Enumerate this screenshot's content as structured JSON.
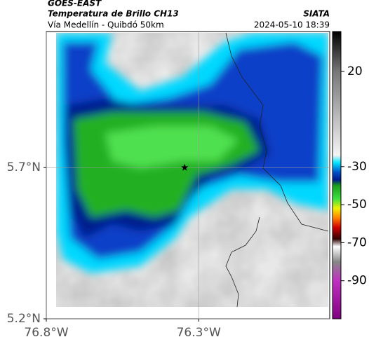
{
  "header": {
    "title": "GOES-EAST",
    "subtitle": "Temperatura de Brillo CH13",
    "source": "SIATA",
    "route": "Vía Medellín - Quibdó 50km",
    "timestamp": "2024-05-10 18:39"
  },
  "chart_data": {
    "type": "map",
    "xlim": [
      -76.8,
      -75.87
    ],
    "ylim": [
      5.2,
      6.15
    ],
    "xticks": [
      {
        "value": -76.8,
        "label": "76.8°W"
      },
      {
        "value": -76.3,
        "label": "76.3°W"
      }
    ],
    "yticks": [
      {
        "value": 5.2,
        "label": "5.2°N"
      },
      {
        "value": 5.7,
        "label": "5.7°N"
      }
    ],
    "grid": true,
    "marker": {
      "x": -76.346,
      "y": 5.7
    },
    "colorbar": {
      "lim": [
        -110,
        41
      ],
      "ticks": [
        20,
        -30,
        -50,
        -70,
        -90
      ],
      "stops": [
        {
          "value": 41,
          "color": "#000000"
        },
        {
          "value": 20,
          "color": "#777777"
        },
        {
          "value": -24,
          "color": "#f4f4f4"
        },
        {
          "value": -28,
          "color": "#00e5ff"
        },
        {
          "value": -33,
          "color": "#0050c8"
        },
        {
          "value": -37,
          "color": "#001a8c"
        },
        {
          "value": -40,
          "color": "#1a9e1a"
        },
        {
          "value": -47,
          "color": "#40e040"
        },
        {
          "value": -52,
          "color": "#f0f000"
        },
        {
          "value": -57,
          "color": "#ff8000"
        },
        {
          "value": -62,
          "color": "#d00000"
        },
        {
          "value": -68,
          "color": "#300000"
        },
        {
          "value": -72,
          "color": "#ffffff"
        },
        {
          "value": -80,
          "color": "#888888"
        },
        {
          "value": -90,
          "color": "#c030c0"
        },
        {
          "value": -110,
          "color": "#800080"
        }
      ]
    }
  }
}
